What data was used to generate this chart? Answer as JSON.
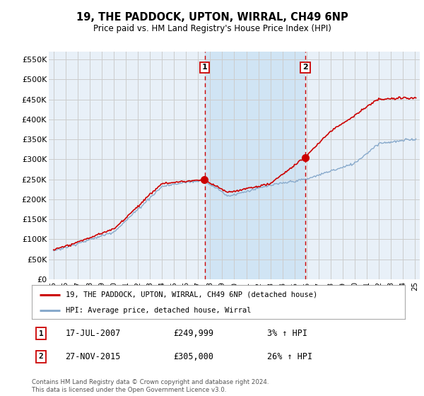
{
  "title": "19, THE PADDOCK, UPTON, WIRRAL, CH49 6NP",
  "subtitle": "Price paid vs. HM Land Registry's House Price Index (HPI)",
  "ylabel_ticks": [
    "£0",
    "£50K",
    "£100K",
    "£150K",
    "£200K",
    "£250K",
    "£300K",
    "£350K",
    "£400K",
    "£450K",
    "£500K",
    "£550K"
  ],
  "ytick_values": [
    0,
    50000,
    100000,
    150000,
    200000,
    250000,
    300000,
    350000,
    400000,
    450000,
    500000,
    550000
  ],
  "ylim": [
    0,
    570000
  ],
  "sale1_date": "17-JUL-2007",
  "sale1_price": 249999,
  "sale1_hpi": "3% ↑ HPI",
  "sale1_x": 2007.54,
  "sale2_date": "27-NOV-2015",
  "sale2_price": 305000,
  "sale2_hpi": "26% ↑ HPI",
  "sale2_x": 2015.9,
  "legend_house_label": "19, THE PADDOCK, UPTON, WIRRAL, CH49 6NP (detached house)",
  "legend_hpi_label": "HPI: Average price, detached house, Wirral",
  "footnote": "Contains HM Land Registry data © Crown copyright and database right 2024.\nThis data is licensed under the Open Government Licence v3.0.",
  "line_color_house": "#cc0000",
  "line_color_hpi": "#88aacc",
  "vline_color": "#cc0000",
  "grid_color": "#cccccc",
  "bg_color": "#ffffff",
  "plot_bg_color": "#e8f0f8",
  "shade_color": "#d0e4f4",
  "table_border_color": "#cc0000"
}
